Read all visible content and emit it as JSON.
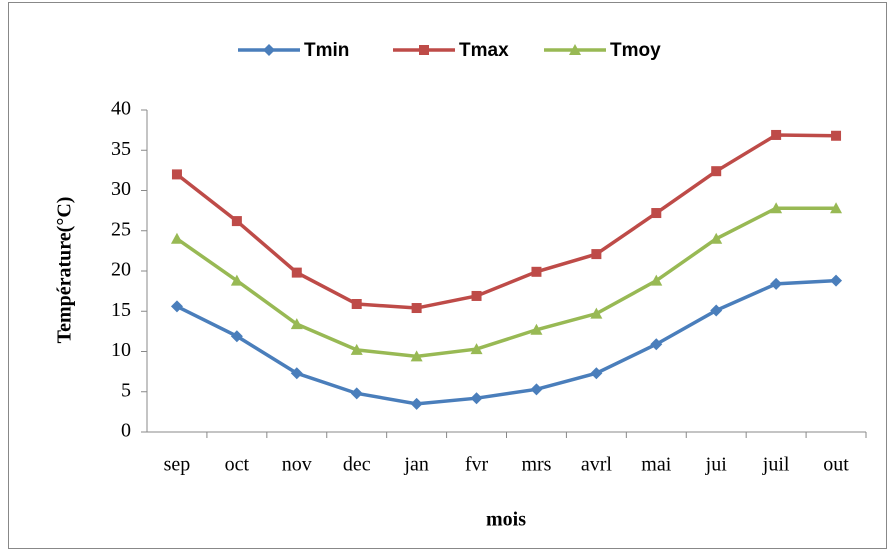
{
  "chart_data": {
    "type": "line",
    "x_label": "mois",
    "y_label": "Température(°C)",
    "categories": [
      "sep",
      "oct",
      "nov",
      "dec",
      "jan",
      "fvr",
      "mrs",
      "avrl",
      "mai",
      "jui",
      "juil",
      "out"
    ],
    "series": [
      {
        "name": "Tmin",
        "color": "#4a7ebb",
        "marker": "diamond",
        "values": [
          15.6,
          11.9,
          7.3,
          4.8,
          3.5,
          4.2,
          5.3,
          7.3,
          10.9,
          15.1,
          18.4,
          18.8
        ]
      },
      {
        "name": "Tmax",
        "color": "#be4b48",
        "marker": "square",
        "values": [
          32.0,
          26.2,
          19.8,
          15.9,
          15.4,
          16.9,
          19.9,
          22.1,
          27.2,
          32.4,
          36.9,
          36.8
        ]
      },
      {
        "name": "Tmoy",
        "color": "#98b954",
        "marker": "triangle",
        "values": [
          24.0,
          18.8,
          13.4,
          10.2,
          9.4,
          10.3,
          12.7,
          14.7,
          18.8,
          24.0,
          27.8,
          27.8
        ]
      }
    ],
    "ylim": [
      0,
      40
    ],
    "yticks": [
      0,
      5,
      10,
      15,
      20,
      25,
      30,
      35,
      40
    ],
    "grid": false,
    "legend": "top"
  }
}
